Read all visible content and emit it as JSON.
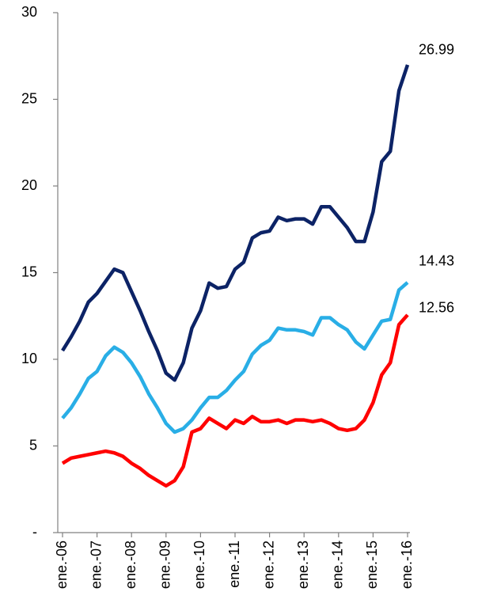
{
  "chart_data": {
    "type": "line",
    "categories": [
      "ene.-06",
      null,
      null,
      null,
      "ene.-07",
      null,
      null,
      null,
      "ene.-08",
      null,
      null,
      null,
      "ene.-09",
      null,
      null,
      null,
      "ene.-10",
      null,
      null,
      null,
      "ene.-11",
      null,
      null,
      null,
      "ene.-12",
      null,
      null,
      null,
      "ene.-13",
      null,
      null,
      null,
      "ene.-14",
      null,
      null,
      null,
      "ene.-15",
      null,
      null,
      null,
      "ene.-16"
    ],
    "series": [
      {
        "color": "#0c2366",
        "values": [
          10.5,
          11.3,
          12.2,
          13.3,
          13.8,
          14.5,
          15.2,
          15.0,
          13.9,
          12.8,
          11.6,
          10.5,
          9.2,
          8.8,
          9.8,
          11.8,
          12.8,
          14.4,
          14.1,
          14.2,
          15.2,
          15.6,
          17.0,
          17.3,
          17.4,
          18.2,
          18.0,
          18.1,
          18.1,
          17.8,
          18.8,
          18.8,
          18.2,
          17.6,
          16.8,
          16.8,
          18.5,
          21.4,
          22.0,
          25.5,
          26.99
        ]
      },
      {
        "color": "#29aee6",
        "values": [
          6.6,
          7.2,
          8.0,
          8.9,
          9.3,
          10.2,
          10.7,
          10.4,
          9.8,
          9.0,
          8.0,
          7.2,
          6.3,
          5.8,
          6.0,
          6.5,
          7.2,
          7.8,
          7.8,
          8.2,
          8.8,
          9.3,
          10.3,
          10.8,
          11.1,
          11.8,
          11.7,
          11.7,
          11.6,
          11.4,
          12.4,
          12.4,
          12.0,
          11.7,
          11.0,
          10.6,
          11.4,
          12.2,
          12.3,
          14.0,
          14.43
        ]
      },
      {
        "color": "#ff0000",
        "values": [
          4.0,
          4.3,
          4.4,
          4.5,
          4.6,
          4.7,
          4.6,
          4.4,
          4.0,
          3.7,
          3.3,
          3.0,
          2.7,
          3.0,
          3.8,
          5.8,
          6.0,
          6.6,
          6.3,
          6.0,
          6.5,
          6.3,
          6.7,
          6.4,
          6.4,
          6.5,
          6.3,
          6.5,
          6.5,
          6.4,
          6.5,
          6.3,
          6.0,
          5.9,
          6.0,
          6.5,
          7.5,
          9.1,
          9.8,
          12.0,
          12.56
        ]
      }
    ],
    "ylim": [
      0,
      30
    ],
    "yticks": [
      {
        "value": 0,
        "label": "-"
      },
      5,
      10,
      15,
      20,
      25,
      30
    ],
    "grid": false
  }
}
